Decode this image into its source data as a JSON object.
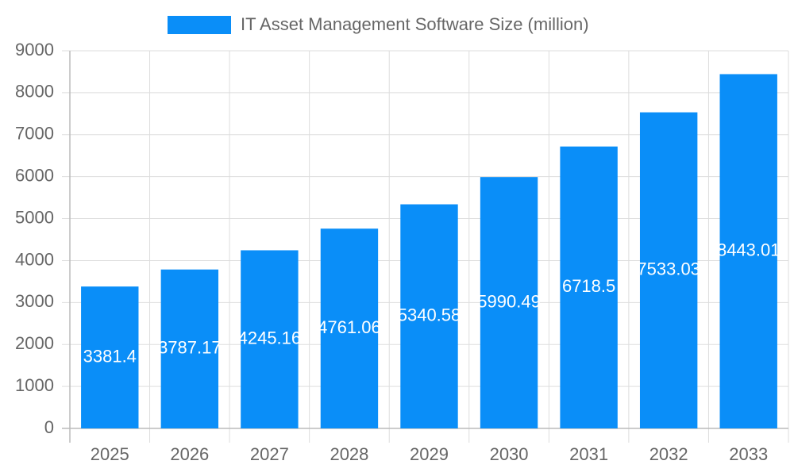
{
  "chart_data": {
    "type": "bar",
    "categories": [
      "2025",
      "2026",
      "2027",
      "2028",
      "2029",
      "2030",
      "2031",
      "2032",
      "2033"
    ],
    "series": [
      {
        "name": "IT Asset Management Software Size (million)",
        "color": "#0a8ef8",
        "values": [
          3381.4,
          3787.17,
          4245.16,
          4761.06,
          5340.58,
          5990.49,
          6718.5,
          7533.03,
          8443.01
        ]
      }
    ],
    "ylim": [
      0,
      9000
    ],
    "yticks": [
      0,
      1000,
      2000,
      3000,
      4000,
      5000,
      6000,
      7000,
      8000,
      9000
    ],
    "grid": true,
    "data_labels": true,
    "legend": "top"
  }
}
